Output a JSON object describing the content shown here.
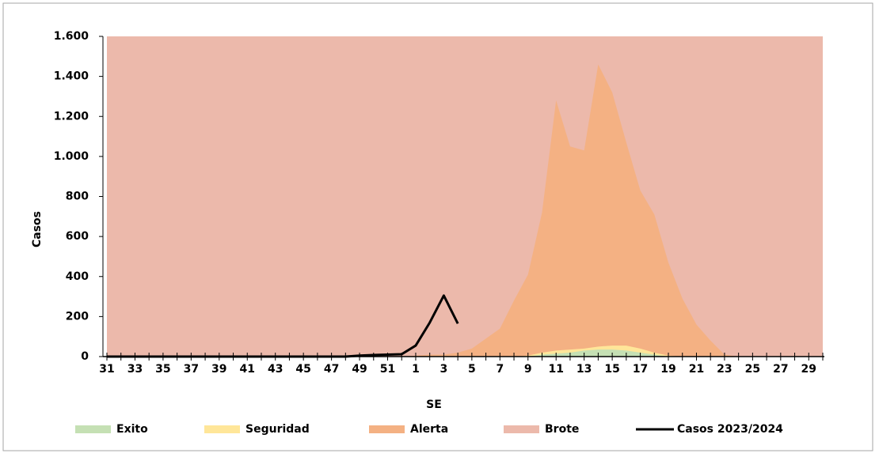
{
  "chart_data": {
    "type": "area",
    "x_label": "SE",
    "y_label": "Casos",
    "categories": [
      "31",
      null,
      "33",
      null,
      "35",
      null,
      "37",
      null,
      "39",
      null,
      "41",
      null,
      "43",
      null,
      "45",
      null,
      "47",
      null,
      "49",
      null,
      "51",
      null,
      "1",
      null,
      "3",
      null,
      "5",
      null,
      "7",
      null,
      "9",
      null,
      "11",
      null,
      "13",
      null,
      "15",
      null,
      "17",
      null,
      "19",
      null,
      "21",
      null,
      "23",
      null,
      "25",
      null,
      "27",
      null,
      "29",
      null
    ],
    "ylim": [
      0,
      1600
    ],
    "yticks": [
      0,
      200,
      400,
      600,
      800,
      {
        "value": 1000,
        "label": "1.000"
      },
      {
        "value": 1200,
        "label": "1.200"
      },
      {
        "value": 1400,
        "label": "1.400"
      },
      {
        "value": 1600,
        "label": "1.600"
      }
    ],
    "grid": false,
    "legend": "bottom",
    "series": [
      {
        "name": "Exito",
        "type": "area",
        "color": "#c5e0b4",
        "values": [
          0,
          0,
          0,
          0,
          0,
          0,
          0,
          0,
          0,
          0,
          0,
          0,
          0,
          0,
          0,
          0,
          0,
          0,
          0,
          0,
          0,
          0,
          0,
          0,
          0,
          0,
          0,
          0,
          0,
          0,
          0,
          10,
          15,
          20,
          30,
          35,
          35,
          30,
          20,
          10,
          0,
          0,
          0,
          0,
          0,
          0,
          0,
          0,
          0,
          0,
          0,
          0
        ]
      },
      {
        "name": "Seguridad",
        "type": "area",
        "color": "#ffe699",
        "values": [
          0,
          0,
          0,
          0,
          0,
          0,
          0,
          0,
          0,
          0,
          0,
          0,
          0,
          0,
          0,
          0,
          0,
          0,
          0,
          0,
          0,
          0,
          0,
          0,
          0,
          0,
          0,
          0,
          0,
          0,
          5,
          20,
          30,
          35,
          40,
          50,
          55,
          55,
          40,
          20,
          5,
          0,
          0,
          0,
          0,
          0,
          0,
          0,
          0,
          0,
          0,
          0
        ]
      },
      {
        "name": "Alerta",
        "type": "area",
        "color": "#f4b183",
        "values": [
          0,
          0,
          0,
          0,
          0,
          0,
          0,
          0,
          0,
          0,
          0,
          0,
          0,
          0,
          0,
          0,
          0,
          0,
          0,
          0,
          0,
          0,
          5,
          10,
          10,
          20,
          40,
          90,
          140,
          280,
          410,
          720,
          1280,
          1050,
          1030,
          1460,
          1320,
          1070,
          830,
          710,
          470,
          290,
          160,
          80,
          10,
          0,
          0,
          0,
          0,
          0,
          0,
          0
        ]
      },
      {
        "name": "Brote",
        "type": "area",
        "color": "#ecb9ab",
        "values": [
          1600,
          1600,
          1600,
          1600,
          1600,
          1600,
          1600,
          1600,
          1600,
          1600,
          1600,
          1600,
          1600,
          1600,
          1600,
          1600,
          1600,
          1600,
          1600,
          1600,
          1600,
          1600,
          1600,
          1600,
          1600,
          1600,
          1600,
          1600,
          1600,
          1600,
          1600,
          1600,
          1600,
          1600,
          1600,
          1600,
          1600,
          1600,
          1600,
          1600,
          1600,
          1600,
          1600,
          1600,
          1600,
          1600,
          1600,
          1600,
          1600,
          1600,
          1600,
          1600
        ]
      },
      {
        "name": "Casos 2023/2024",
        "type": "line",
        "color": "#000000",
        "values": [
          0,
          0,
          0,
          0,
          0,
          0,
          0,
          0,
          0,
          0,
          0,
          0,
          0,
          0,
          0,
          0,
          0,
          0,
          5,
          8,
          10,
          12,
          55,
          170,
          305,
          165,
          null,
          null,
          null,
          null,
          null,
          null,
          null,
          null,
          null,
          null,
          null,
          null,
          null,
          null,
          null,
          null,
          null,
          null,
          null,
          null,
          null,
          null,
          null,
          null,
          null,
          null
        ]
      }
    ]
  }
}
